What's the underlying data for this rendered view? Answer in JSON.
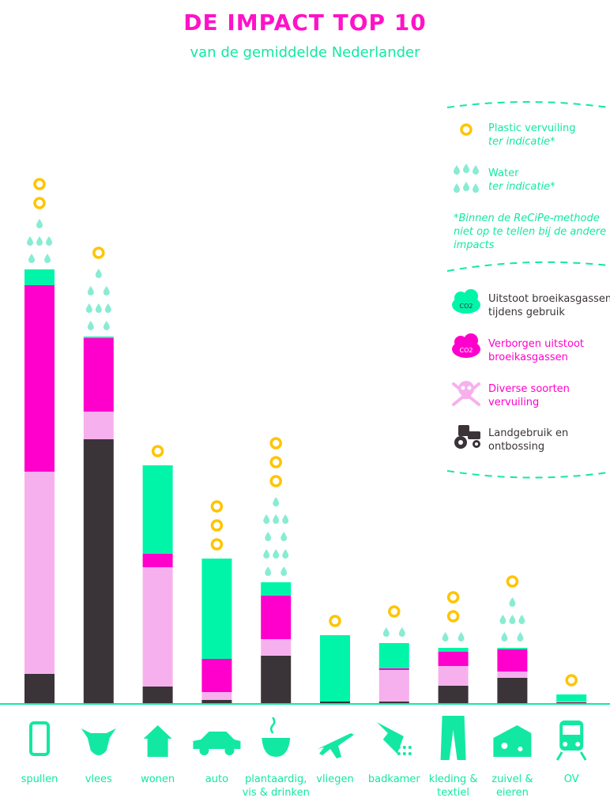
{
  "title": "DE IMPACT TOP 10",
  "subtitle": "van de gemiddelde Nederlander",
  "colors": {
    "direct": "#00f5a8",
    "hidden": "#ff00cc",
    "pollution": "#f7b0ee",
    "land": "#3a3338",
    "plastic": "#ffc400",
    "water": "#88ecd2",
    "label": "#13e8a3",
    "dark": "#3a3338"
  },
  "legend": {
    "plastic_line1": "Plastic vervuiling",
    "plastic_line2": "ter indicatie*",
    "water_line1": "Water",
    "water_line2": "ter indicatie*",
    "footnote_line1": "*Binnen de ReCiPe-methode",
    "footnote_line2": "niet op te tellen bij de andere",
    "footnote_line3": "impacts",
    "co2_badge": "CO2",
    "direct_line1": "Uitstoot broeikasgassen",
    "direct_line2": "tijdens gebruik",
    "hidden_line1": "Verborgen uitstoot",
    "hidden_line2": "broeikasgassen",
    "pollution_line1": "Diverse soorten",
    "pollution_line2": "vervuiling",
    "land_line1": "Landgebruik en",
    "land_line2": "ontbossing"
  },
  "chart_data": {
    "type": "bar",
    "stacked": true,
    "ylim": [
      0,
      550
    ],
    "categories": [
      "spullen",
      "vlees",
      "wonen",
      "auto",
      "plantaardig, vis & drinken",
      "vliegen",
      "badkamer",
      "kleding & textiel",
      "zuivel & eieren",
      "OV"
    ],
    "category_labels": [
      [
        "spullen"
      ],
      [
        "vlees"
      ],
      [
        "wonen"
      ],
      [
        "auto"
      ],
      [
        "plantaardig,",
        "vis & drinken"
      ],
      [
        "vliegen"
      ],
      [
        "badkamer"
      ],
      [
        "kleding &",
        "textiel"
      ],
      [
        "zuivel &",
        "eieren"
      ],
      [
        "OV"
      ]
    ],
    "series": [
      {
        "name": "Landgebruik en ontbossing",
        "values": [
          37,
          334,
          21,
          4,
          60,
          2,
          2,
          22,
          32,
          1
        ]
      },
      {
        "name": "Diverse soorten vervuiling",
        "values": [
          256,
          35,
          151,
          10,
          21,
          0,
          40,
          25,
          8,
          1
        ]
      },
      {
        "name": "Verborgen uitstoot broeikasgassen",
        "values": [
          236,
          93,
          17,
          42,
          55,
          0,
          2,
          18,
          28,
          0
        ]
      },
      {
        "name": "Uitstoot broeikasgassen tijdens gebruik",
        "values": [
          20,
          2,
          112,
          127,
          17,
          84,
          32,
          5,
          2,
          9
        ]
      }
    ],
    "plastic_indication": [
      2,
      1,
      1,
      3,
      3,
      1,
      1,
      2,
      1,
      1
    ],
    "water_indication": [
      3,
      4,
      0,
      0,
      5,
      0,
      1,
      1,
      3,
      0
    ]
  }
}
